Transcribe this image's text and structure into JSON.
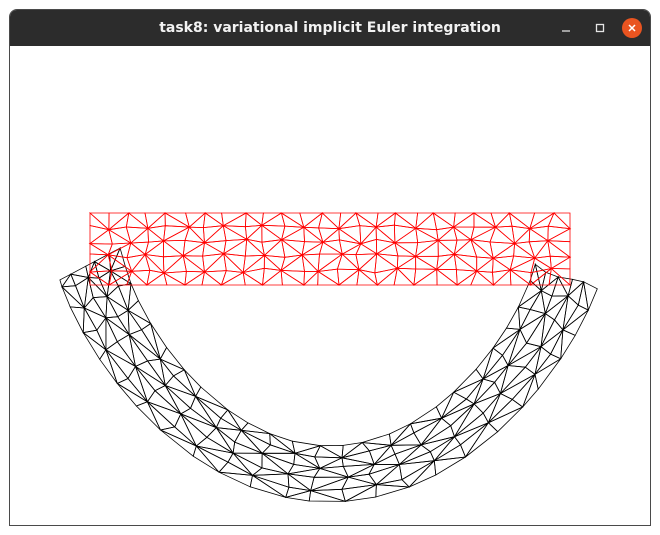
{
  "window": {
    "title": "task8: variational implicit Euler integration",
    "controls": {
      "minimize_icon": "minimize-icon",
      "maximize_icon": "maximize-icon",
      "close_icon": "close-icon"
    }
  },
  "colors": {
    "titlebar": "#2c2c2c",
    "title_text": "#f2f2f2",
    "close_button": "#e95420",
    "rest_mesh": "#ff0000",
    "deformed_mesh": "#000000",
    "canvas_background": "#ffffff"
  }
}
